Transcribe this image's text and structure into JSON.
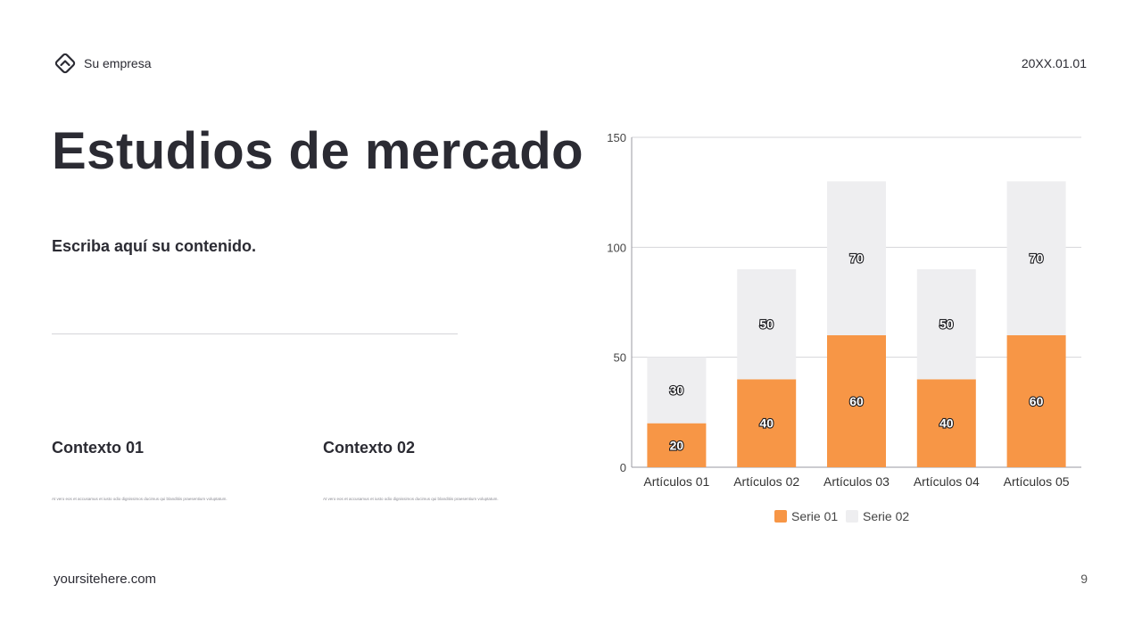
{
  "header": {
    "company": "Su empresa",
    "date": "20XX.01.01"
  },
  "main": {
    "title": "Estudios de mercado",
    "subtitle": "Escriba aquí su contenido.",
    "contexts": [
      {
        "heading": "Contexto 01",
        "body": "At vero eos et accusamus et iusto odio dignissimos ducimus qui blanditiis praesentium voluptatum."
      },
      {
        "heading": "Contexto 02",
        "body": "At vero eos et accusamus et iusto odio dignissimos ducimus qui blanditiis praesentium voluptatum."
      }
    ]
  },
  "footer": {
    "url": "yoursitehere.com",
    "page": "9"
  },
  "colors": {
    "serie01": "#f79646",
    "serie02": "#eeeef0",
    "text": "#2b2b33"
  },
  "chart_data": {
    "type": "bar",
    "stacked": true,
    "categories": [
      "Artículos 01",
      "Artículos 02",
      "Artículos 03",
      "Artículos 04",
      "Artículos 05"
    ],
    "series": [
      {
        "name": "Serie 01",
        "values": [
          20,
          40,
          60,
          40,
          60
        ]
      },
      {
        "name": "Serie 02",
        "values": [
          30,
          50,
          70,
          50,
          70
        ]
      }
    ],
    "ylim": [
      0,
      150
    ],
    "yticks": [
      0,
      50,
      100,
      150
    ],
    "grid": true,
    "legend": "bottom",
    "data_labels": true
  }
}
